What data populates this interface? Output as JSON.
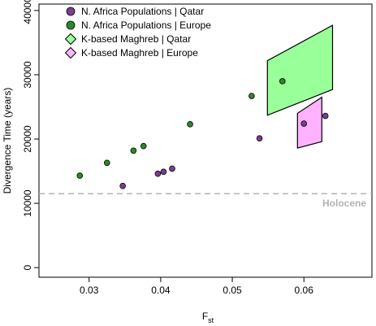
{
  "chart_data": {
    "type": "scatter",
    "xlabel": "F",
    "xlabel_sub": "st",
    "ylabel": "Divergence Time (years)",
    "xlim": [
      0.023,
      0.0695
    ],
    "ylim": [
      -1500,
      41000
    ],
    "x_ticks": [
      0.03,
      0.04,
      0.05,
      0.06
    ],
    "x_tick_labels": [
      "0.03",
      "0.04",
      "0.05",
      "0.06"
    ],
    "y_ticks": [
      0,
      10000,
      20000,
      30000,
      40000
    ],
    "y_tick_labels": [
      "0",
      "10000",
      "20000",
      "30000",
      "40000"
    ],
    "grid": false,
    "legend_position": "top-left",
    "series": [
      {
        "name": "N. Africa Populations | Qatar",
        "marker": "circle",
        "color": "#7b3f8f",
        "points": [
          {
            "x": 0.0347,
            "y": 12700
          },
          {
            "x": 0.0396,
            "y": 14600
          },
          {
            "x": 0.0404,
            "y": 14900
          },
          {
            "x": 0.0416,
            "y": 15400
          },
          {
            "x": 0.0538,
            "y": 20100
          },
          {
            "x": 0.06,
            "y": 22400
          },
          {
            "x": 0.063,
            "y": 23600
          }
        ]
      },
      {
        "name": "N. Africa Populations | Europe",
        "marker": "circle",
        "color": "#2a8a2a",
        "points": [
          {
            "x": 0.0287,
            "y": 14300
          },
          {
            "x": 0.0325,
            "y": 16300
          },
          {
            "x": 0.0362,
            "y": 18200
          },
          {
            "x": 0.0376,
            "y": 18900
          },
          {
            "x": 0.0441,
            "y": 22300
          },
          {
            "x": 0.0527,
            "y": 26700
          },
          {
            "x": 0.057,
            "y": 29000
          }
        ]
      },
      {
        "name": "K-based Maghreb | Qatar",
        "marker": "diamond",
        "color": "#99ff99",
        "region": [
          {
            "x": 0.0549,
            "y": 23700
          },
          {
            "x": 0.0549,
            "y": 32200
          },
          {
            "x": 0.064,
            "y": 37700
          },
          {
            "x": 0.064,
            "y": 27700
          }
        ]
      },
      {
        "name": "K-based Maghreb | Europe",
        "marker": "diamond",
        "color": "#ffb3ff",
        "region": [
          {
            "x": 0.0591,
            "y": 18600
          },
          {
            "x": 0.0591,
            "y": 24000
          },
          {
            "x": 0.0625,
            "y": 26500
          },
          {
            "x": 0.0625,
            "y": 19600
          }
        ]
      }
    ],
    "reference_line": {
      "y": 11500,
      "label": "Holocene",
      "color": "#b3b3b3",
      "style": "dashed"
    }
  }
}
